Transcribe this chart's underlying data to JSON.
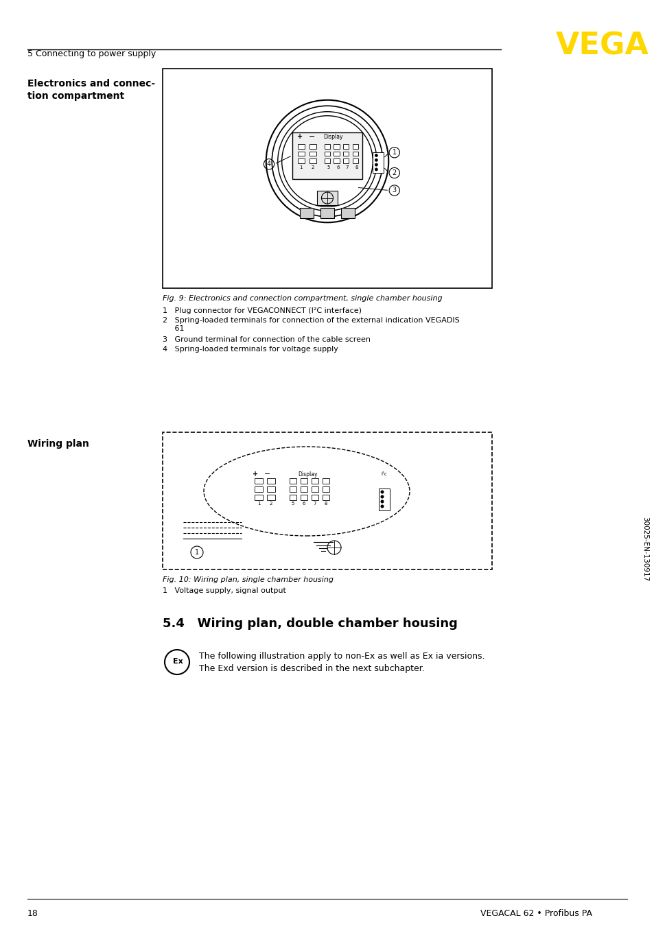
{
  "page_number": "18",
  "footer_right": "VEGACAL 62 • Profibus PA",
  "header_left": "5 Connecting to power supply",
  "vega_color": "#FFD700",
  "section_label_left": "Electronics and connec-\ntion compartment",
  "fig9_caption": "Fig. 9: Electronics and connection compartment, single chamber housing",
  "fig9_items": [
    "1   Plug connector for VEGACONNECT (I²C interface)",
    "2   Spring-loaded terminals for connection of the external indication VEGADIS\n     61",
    "3   Ground terminal for connection of the cable screen",
    "4   Spring-loaded terminals for voltage supply"
  ],
  "wiring_plan_label": "Wiring plan",
  "fig10_caption": "Fig. 10: Wiring plan, single chamber housing",
  "fig10_items": [
    "1   Voltage supply, signal output"
  ],
  "section_title": "5.4   Wiring plan, double chamber housing",
  "section_body": "The following illustration apply to non-Ex as well as Ex ia versions.\nThe Exd version is described in the next subchapter.",
  "sidebar_code": "30025-EN-130917",
  "background_color": "#FFFFFF",
  "text_color": "#000000",
  "border_color": "#000000"
}
